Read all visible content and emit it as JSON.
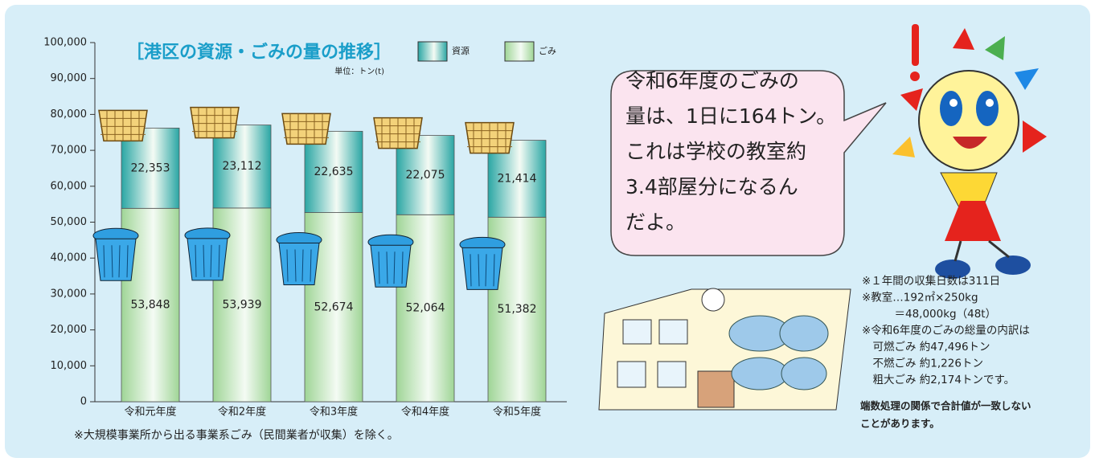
{
  "chart_data": {
    "type": "stacked-bar",
    "title": "［港区の資源・ごみの量の推移］",
    "unit": "単位：トン(t)",
    "categories": [
      "令和元年度",
      "令和2年度",
      "令和3年度",
      "令和4年度",
      "令和5年度"
    ],
    "series": [
      {
        "name": "ごみ",
        "color": "#9fd596",
        "values": [
          53848,
          53939,
          52674,
          52064,
          51382
        ],
        "value_labels": [
          "53,848",
          "53,939",
          "52,674",
          "52,064",
          "51,382"
        ]
      },
      {
        "name": "資源",
        "color": "#2aa6a4",
        "values": [
          22353,
          23112,
          22635,
          22075,
          21414
        ],
        "value_labels": [
          "22,353",
          "23,112",
          "22,635",
          "22,075",
          "21,414"
        ]
      }
    ],
    "ylim": [
      0,
      100000
    ],
    "yticks": [
      0,
      {
        "value": 10000,
        "label": "10,000"
      },
      {
        "value": 20000,
        "label": "20,000"
      },
      {
        "value": 30000,
        "label": "30,000"
      },
      {
        "value": 40000,
        "label": "40,000"
      },
      {
        "value": 50000,
        "label": "50,000"
      },
      {
        "value": 60000,
        "label": "60,000"
      },
      {
        "value": 70000,
        "label": "70,000"
      },
      {
        "value": 80000,
        "label": "80,000"
      },
      {
        "value": 90000,
        "label": "90,000"
      },
      {
        "value": 100000,
        "label": "100,000"
      }
    ],
    "footnote": "※大規模事業所から出る事業系ごみ（民間業者が収集）を除く。"
  },
  "bubble": {
    "lines": [
      "令和6年度のごみの",
      "量は、1日に164トン。",
      "これは学校の教室約",
      "3.4部屋分になるん",
      "だよ。"
    ]
  },
  "notes": {
    "lines": [
      "※１年間の収集日数は311日",
      "※教室…192㎡×250kg",
      "　　　＝48,000kg（48t）",
      "※令和6年度のごみの総量の内訳は",
      "　可燃ごみ 約47,496トン",
      "　不燃ごみ 約1,226トン",
      "　粗大ごみ 約2,174トンです。"
    ],
    "caution": [
      "端数処理の関係で合計値が一致しない",
      "ことがあります。"
    ]
  }
}
